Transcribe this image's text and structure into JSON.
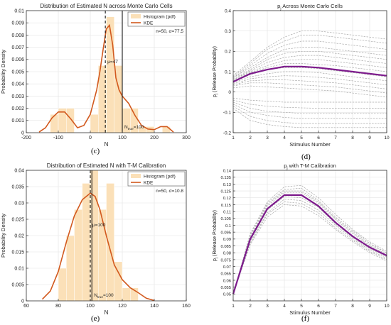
{
  "figure": {
    "panel_labels": [
      "(c)",
      "(d)",
      "(e)",
      "(f)"
    ]
  },
  "chart_data": [
    {
      "panel": "(c)",
      "type": "histogram",
      "title": "Distribution of Estimated N across Monte Carlo Cells",
      "xlabel": "N",
      "ylabel": "Probability Density",
      "xlim": [
        -200,
        300
      ],
      "ylim": [
        0,
        0.01
      ],
      "xticks": [
        "-200",
        "-100",
        "0",
        "100",
        "200",
        "300"
      ],
      "yticks": [
        "0",
        "0.001",
        "0.002",
        "0.003",
        "0.004",
        "0.005",
        "0.006",
        "0.007",
        "0.008",
        "0.009",
        "0.01"
      ],
      "grid": true,
      "legend": {
        "position": "top-right",
        "entries": [
          "Histogram (pdf)",
          "KDE"
        ]
      },
      "annotation": "n=50, σ=77.5",
      "bins": [
        {
          "x0": -125,
          "x1": -100,
          "value": 0.0015
        },
        {
          "x0": -100,
          "x1": -75,
          "value": 0.002
        },
        {
          "x0": -75,
          "x1": -50,
          "value": 0.002
        },
        {
          "x0": 0,
          "x1": 25,
          "value": 0.0015
        },
        {
          "x0": 25,
          "x1": 50,
          "value": 0.0055
        },
        {
          "x0": 50,
          "x1": 75,
          "value": 0.0095
        },
        {
          "x0": 75,
          "x1": 100,
          "value": 0.0055
        },
        {
          "x0": 100,
          "x1": 125,
          "value": 0.002
        },
        {
          "x0": 125,
          "x1": 150,
          "value": 0.002
        },
        {
          "x0": 150,
          "x1": 175,
          "value": 0.0005
        },
        {
          "x0": 175,
          "x1": 200,
          "value": 0.0005
        },
        {
          "x0": 225,
          "x1": 250,
          "value": 0.0005
        }
      ],
      "kde": {
        "x": [
          -160,
          -140,
          -120,
          -100,
          -80,
          -60,
          -40,
          -20,
          0,
          20,
          30,
          40,
          50,
          60,
          70,
          80,
          90,
          100,
          120,
          140,
          160,
          180,
          200,
          220,
          240,
          260
        ],
        "y": [
          5e-05,
          0.0004,
          0.0012,
          0.0017,
          0.0017,
          0.0011,
          0.0004,
          0.0006,
          0.0015,
          0.0035,
          0.005,
          0.0068,
          0.0085,
          0.0088,
          0.0072,
          0.0045,
          0.0035,
          0.003,
          0.0024,
          0.0014,
          0.0006,
          0.0003,
          0.00025,
          0.0005,
          0.0005,
          5e-05
        ]
      },
      "vlines": [
        {
          "x": 47,
          "style": "dashed",
          "label": "μ=47"
        },
        {
          "x": 100,
          "style": "solid",
          "label": "N",
          "label_sub": "true",
          "label_rest": "=100"
        }
      ]
    },
    {
      "panel": "(d)",
      "type": "line",
      "title": "p",
      "title_sub": "j",
      "title_rest": " Across Monte Carlo Cells",
      "xlabel": "Stimulus Number",
      "ylabel": "p",
      "ylabel_sub": "j",
      "ylabel_rest": " (Release Probability)",
      "xlim": [
        1,
        10
      ],
      "ylim": [
        -0.2,
        0.4
      ],
      "xticks": [
        "1",
        "2",
        "3",
        "4",
        "5",
        "6",
        "7",
        "8",
        "9",
        "10"
      ],
      "yticks": [
        "-0.2",
        "-0.1",
        "0",
        "0.1",
        "0.2",
        "0.3",
        "0.4"
      ],
      "grid": true,
      "x": [
        1,
        2,
        3,
        4,
        5,
        6,
        7,
        8,
        9,
        10
      ],
      "mean": [
        0.05,
        0.09,
        0.11,
        0.125,
        0.125,
        0.12,
        0.11,
        0.1,
        0.09,
        0.08
      ],
      "cells": [
        [
          0.08,
          0.15,
          0.22,
          0.27,
          0.3,
          0.3,
          0.29,
          0.28,
          0.27,
          0.26
        ],
        [
          0.075,
          0.14,
          0.21,
          0.25,
          0.28,
          0.28,
          0.27,
          0.26,
          0.25,
          0.24
        ],
        [
          0.07,
          0.13,
          0.19,
          0.23,
          0.25,
          0.25,
          0.24,
          0.23,
          0.22,
          0.21
        ],
        [
          0.07,
          0.12,
          0.17,
          0.21,
          0.22,
          0.22,
          0.21,
          0.2,
          0.19,
          0.18
        ],
        [
          0.065,
          0.11,
          0.16,
          0.19,
          0.2,
          0.2,
          0.19,
          0.18,
          0.17,
          0.16
        ],
        [
          0.06,
          0.105,
          0.145,
          0.17,
          0.18,
          0.18,
          0.17,
          0.16,
          0.15,
          0.14
        ],
        [
          0.06,
          0.1,
          0.13,
          0.155,
          0.16,
          0.16,
          0.15,
          0.14,
          0.13,
          0.12
        ],
        [
          0.055,
          0.095,
          0.12,
          0.14,
          0.14,
          0.135,
          0.13,
          0.12,
          0.11,
          0.1
        ],
        [
          0.05,
          0.085,
          0.11,
          0.12,
          0.12,
          0.115,
          0.105,
          0.095,
          0.085,
          0.075
        ],
        [
          0.045,
          0.075,
          0.09,
          0.1,
          0.1,
          0.095,
          0.085,
          0.075,
          0.065,
          0.055
        ],
        [
          0.04,
          0.065,
          0.075,
          0.08,
          0.078,
          0.072,
          0.065,
          0.055,
          0.045,
          0.035
        ],
        [
          0.035,
          0.055,
          0.06,
          0.06,
          0.055,
          0.05,
          0.045,
          0.035,
          0.025,
          0.015
        ],
        [
          0.03,
          0.045,
          0.045,
          0.04,
          0.035,
          0.03,
          0.025,
          0.015,
          0.005,
          -0.005
        ],
        [
          0.02,
          0.03,
          0.025,
          0.02,
          0.015,
          0.01,
          0.005,
          -0.005,
          -0.015,
          -0.025
        ],
        [
          -0.03,
          -0.04,
          -0.045,
          -0.05,
          -0.05,
          -0.05,
          -0.05,
          -0.05,
          -0.05,
          -0.05
        ],
        [
          -0.04,
          -0.06,
          -0.07,
          -0.075,
          -0.078,
          -0.08,
          -0.08,
          -0.08,
          -0.08,
          -0.08
        ],
        [
          -0.05,
          -0.08,
          -0.095,
          -0.1,
          -0.105,
          -0.105,
          -0.105,
          -0.105,
          -0.105,
          -0.105
        ],
        [
          -0.06,
          -0.1,
          -0.115,
          -0.125,
          -0.13,
          -0.13,
          -0.13,
          -0.13,
          -0.13,
          -0.13
        ],
        [
          -0.07,
          -0.12,
          -0.14,
          -0.15,
          -0.155,
          -0.155,
          -0.155,
          -0.155,
          -0.155,
          -0.155
        ],
        [
          -0.08,
          -0.14,
          -0.16,
          -0.17,
          -0.175,
          -0.175,
          -0.175,
          -0.175,
          -0.175,
          -0.175
        ]
      ]
    },
    {
      "panel": "(e)",
      "type": "histogram",
      "title": "Distribution of Estimated N with T-M Calibration",
      "xlabel": "N",
      "ylabel": "Probability Density",
      "xlim": [
        60,
        160
      ],
      "ylim": [
        0,
        0.04
      ],
      "xticks": [
        "60",
        "80",
        "100",
        "120",
        "140",
        "160"
      ],
      "yticks": [
        "0",
        "0.005",
        "0.01",
        "0.015",
        "0.02",
        "0.025",
        "0.03",
        "0.035",
        "0.04"
      ],
      "grid": true,
      "legend": {
        "position": "top-right",
        "entries": [
          "Histogram (pdf)",
          "KDE"
        ]
      },
      "annotation": "n=50, σ=10.8",
      "bins": [
        {
          "x0": 80,
          "x1": 85,
          "value": 0.01
        },
        {
          "x0": 85,
          "x1": 90,
          "value": 0.02
        },
        {
          "x0": 90,
          "x1": 95,
          "value": 0.028
        },
        {
          "x0": 95,
          "x1": 100,
          "value": 0.036
        },
        {
          "x0": 100,
          "x1": 105,
          "value": 0.04
        },
        {
          "x0": 105,
          "x1": 110,
          "value": 0.028
        },
        {
          "x0": 110,
          "x1": 115,
          "value": 0.036
        },
        {
          "x0": 115,
          "x1": 120,
          "value": 0.012
        },
        {
          "x0": 120,
          "x1": 125,
          "value": 0.004
        },
        {
          "x0": 125,
          "x1": 130,
          "value": 0.004
        }
      ],
      "kde": {
        "x": [
          70,
          75,
          80,
          85,
          90,
          95,
          100,
          103,
          106,
          110,
          115,
          120,
          125,
          130,
          135,
          140
        ],
        "y": [
          0.0005,
          0.003,
          0.009,
          0.018,
          0.026,
          0.031,
          0.033,
          0.032,
          0.028,
          0.02,
          0.011,
          0.0065,
          0.004,
          0.0025,
          0.0008,
          0.0001
        ]
      },
      "vlines": [
        {
          "x": 100,
          "style": "dashed",
          "label": "μ=100"
        },
        {
          "x": 101,
          "style": "solid",
          "label": "N",
          "label_sub": "true",
          "label_rest": "=100"
        }
      ]
    },
    {
      "panel": "(f)",
      "type": "line",
      "title": "p",
      "title_sub": "j",
      "title_rest": " with T-M Calibration",
      "xlabel": "Stimulus Number",
      "ylabel": "p",
      "ylabel_sub": "j",
      "ylabel_rest": " (Release Probability)",
      "xlim": [
        1,
        10
      ],
      "ylim": [
        0.045,
        0.14
      ],
      "xticks": [
        "1",
        "2",
        "3",
        "4",
        "5",
        "6",
        "7",
        "8",
        "9",
        "10"
      ],
      "yticks": [
        "0.05",
        "0.055",
        "0.06",
        "0.065",
        "0.07",
        "0.075",
        "0.08",
        "0.085",
        "0.09",
        "0.095",
        "0.1",
        "0.105",
        "0.11",
        "0.115",
        "0.12",
        "0.125",
        "0.13",
        "0.135",
        "0.14"
      ],
      "grid": true,
      "x": [
        1,
        2,
        3,
        4,
        5,
        6,
        7,
        8,
        9,
        10
      ],
      "mean": [
        0.05,
        0.09,
        0.112,
        0.122,
        0.122,
        0.114,
        0.102,
        0.092,
        0.084,
        0.078
      ],
      "cells": [
        [
          0.05,
          0.094,
          0.117,
          0.128,
          0.129,
          0.12,
          0.108,
          0.097,
          0.088,
          0.081
        ],
        [
          0.05,
          0.093,
          0.116,
          0.126,
          0.127,
          0.118,
          0.106,
          0.096,
          0.087,
          0.08
        ],
        [
          0.05,
          0.092,
          0.115,
          0.125,
          0.125,
          0.117,
          0.105,
          0.095,
          0.086,
          0.08
        ],
        [
          0.05,
          0.091,
          0.114,
          0.124,
          0.124,
          0.116,
          0.104,
          0.094,
          0.085,
          0.079
        ],
        [
          0.05,
          0.089,
          0.111,
          0.121,
          0.12,
          0.113,
          0.101,
          0.091,
          0.083,
          0.077
        ],
        [
          0.05,
          0.088,
          0.109,
          0.119,
          0.118,
          0.111,
          0.1,
          0.09,
          0.082,
          0.076
        ],
        [
          0.05,
          0.087,
          0.108,
          0.117,
          0.116,
          0.109,
          0.098,
          0.089,
          0.081,
          0.075
        ],
        [
          0.05,
          0.086,
          0.106,
          0.115,
          0.114,
          0.107,
          0.097,
          0.088,
          0.08,
          0.074
        ]
      ]
    }
  ]
}
